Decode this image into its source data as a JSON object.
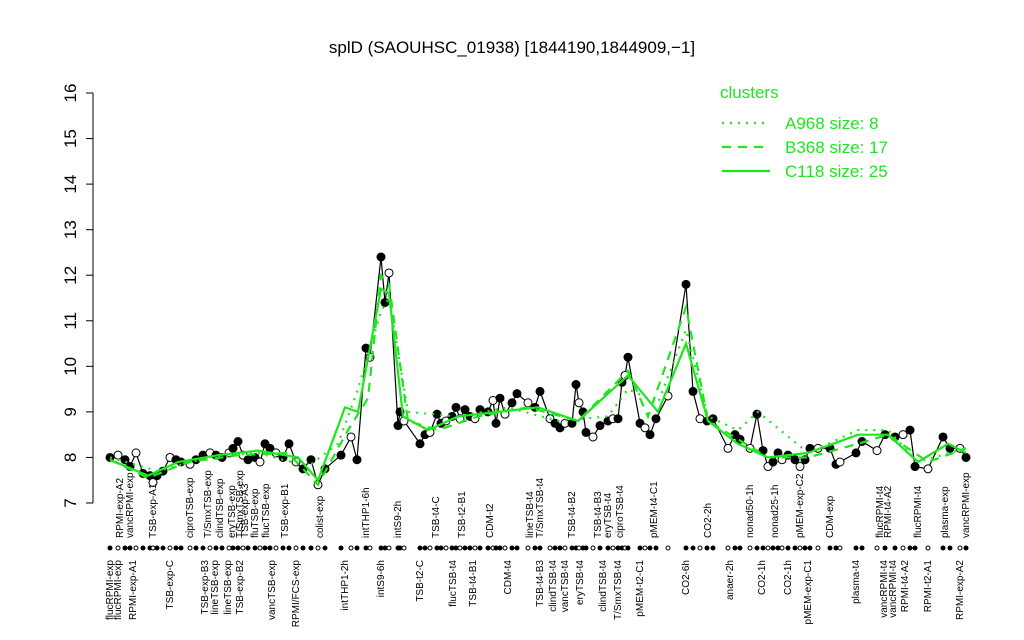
{
  "chart_data": {
    "type": "line",
    "title": "splD (SAOUHSC_01938) [1844190,1844909,−1]",
    "ylim": [
      7,
      16
    ],
    "yticks": [
      7,
      8,
      9,
      10,
      11,
      12,
      13,
      14,
      15,
      16
    ],
    "xlim": [
      0,
      172
    ],
    "legend_title": "clusters",
    "series": [
      {
        "color": "#000000",
        "x": [
          0.4,
          2,
          3.4,
          4.4,
          5.6,
          7,
          8.4,
          9,
          9.8,
          11,
          12.4,
          13.6,
          14.6,
          16.4,
          17.6,
          19,
          20.4,
          21.6,
          22.8,
          24.2,
          25,
          26,
          27,
          28,
          29.4,
          30.4,
          31.4,
          32.4,
          33.6,
          35,
          36.2,
          37.6,
          39,
          40.6,
          42,
          43.4,
          46.6,
          48.6,
          49.8,
          51.6,
          52.4,
          54.6,
          55.4,
          56.2,
          58,
          58.4,
          59.2,
          62.4,
          63.4,
          64.4,
          65.8,
          66.6,
          67.6,
          68.8,
          69.6,
          70.4,
          71.4,
          72.4,
          73.4,
          74.4,
          76,
          77,
          77.6,
          78.4,
          79.4,
          80.8,
          81.8,
          84,
          85.4,
          86.4,
          88.4,
          89.4,
          90.4,
          91.4,
          92.8,
          93.6,
          94.2,
          95,
          95.6,
          97,
          98.4,
          100,
          101,
          102,
          102.8,
          103.4,
          104,
          106.4,
          107.4,
          108.4,
          109.6,
          112,
          115.6,
          117,
          118.4,
          119.8,
          121,
          124,
          125.4,
          126.4,
          128.4,
          129.8,
          131,
          132,
          133,
          134,
          134.8,
          136,
          137.4,
          138.4,
          139.4,
          140.4,
          142,
          144.4,
          145.6,
          146.4,
          149.6,
          150.8,
          153.8,
          155.4,
          157.4,
          159,
          160.4,
          161.4,
          164,
          167,
          168.4,
          170.4,
          171.6
        ],
        "values": [
          8.0,
          8.05,
          7.95,
          7.8,
          8.1,
          7.65,
          7.6,
          7.45,
          7.6,
          7.7,
          8.0,
          7.95,
          7.9,
          7.85,
          7.95,
          8.05,
          8.1,
          8.05,
          8.0,
          8.1,
          8.2,
          8.35,
          8.05,
          7.95,
          8.0,
          7.9,
          8.3,
          8.2,
          8.1,
          8.0,
          8.3,
          7.9,
          7.75,
          7.95,
          7.4,
          7.75,
          8.05,
          8.45,
          7.95,
          10.4,
          10.2,
          12.4,
          11.4,
          12.05,
          8.7,
          9.0,
          8.8,
          8.3,
          8.5,
          8.55,
          8.95,
          8.75,
          8.8,
          8.9,
          9.1,
          8.85,
          9.05,
          8.9,
          8.85,
          9.05,
          9.0,
          9.25,
          8.75,
          9.3,
          8.95,
          9.2,
          9.4,
          9.2,
          9.1,
          9.45,
          8.85,
          8.75,
          8.65,
          8.75,
          8.75,
          9.6,
          9.2,
          9.0,
          8.55,
          8.45,
          8.7,
          8.8,
          8.85,
          8.85,
          9.65,
          9.8,
          10.2,
          8.75,
          8.65,
          8.5,
          8.85,
          9.35,
          11.8,
          9.45,
          8.85,
          8.8,
          8.85,
          8.2,
          8.5,
          8.4,
          8.2,
          8.95,
          8.15,
          7.8,
          7.9,
          8.1,
          7.95,
          8.05,
          7.95,
          7.8,
          7.95,
          8.2,
          8.2,
          8.2,
          7.85,
          7.9,
          8.1,
          8.35,
          8.15,
          8.5,
          8.45,
          8.5,
          8.6,
          7.8,
          7.75,
          8.45,
          8.2,
          8.2,
          8.0
        ]
      },
      {
        "name": "A968 size: 8",
        "color": "#1ee61e",
        "dash": "dotted",
        "axis": "legend",
        "x": [
          0.4,
          10,
          20,
          30,
          40,
          46,
          50,
          54.6,
          56.2,
          60,
          70,
          80,
          90,
          100,
          104,
          110,
          115.6,
          120,
          126,
          130,
          140,
          150,
          156,
          162,
          171.6
        ],
        "values": [
          8.0,
          7.7,
          8.0,
          8.1,
          7.8,
          8.3,
          9.5,
          11.2,
          11.5,
          9.0,
          8.9,
          9.1,
          8.8,
          8.9,
          9.5,
          9.2,
          10.8,
          8.9,
          8.6,
          9.0,
          8.1,
          8.6,
          8.6,
          7.9,
          8.2
        ]
      },
      {
        "name": "B368 size: 17",
        "color": "#1ee61e",
        "dash": "dashed",
        "x": [
          0.4,
          8,
          16,
          26,
          36,
          42,
          48,
          52,
          54.6,
          56.2,
          60,
          66,
          74,
          84,
          94,
          104,
          108,
          115.6,
          120,
          126,
          132,
          140,
          150,
          156,
          164,
          171.6
        ],
        "values": [
          7.95,
          7.55,
          7.9,
          8.05,
          8.1,
          7.4,
          8.6,
          9.3,
          12.0,
          11.8,
          8.8,
          8.6,
          8.9,
          9.1,
          8.8,
          9.9,
          8.9,
          11.3,
          8.8,
          8.4,
          8.0,
          8.0,
          8.3,
          8.5,
          7.9,
          8.2
        ]
      },
      {
        "name": "C118 size: 25",
        "color": "#1ee61e",
        "dash": "solid",
        "x": [
          0.4,
          8,
          14,
          22,
          30,
          38,
          42,
          47.4,
          50,
          54.6,
          56.2,
          59,
          64,
          70,
          78,
          86,
          94,
          104,
          110,
          115.6,
          120,
          126,
          132,
          140,
          150,
          156,
          162,
          168,
          171.6
        ],
        "values": [
          7.95,
          7.6,
          7.9,
          8.05,
          8.15,
          8.0,
          7.5,
          9.1,
          9.0,
          11.7,
          11.6,
          8.9,
          8.6,
          8.9,
          9.0,
          9.1,
          8.8,
          9.8,
          9.0,
          10.5,
          8.8,
          8.3,
          8.0,
          8.1,
          8.5,
          8.5,
          7.9,
          8.3,
          8.1
        ]
      }
    ],
    "top_labels": {
      "x": [
        2.4,
        4.4,
        9,
        16.4,
        20,
        22.4,
        24.8,
        26.4,
        27.4,
        29.4,
        31.6,
        35.4,
        42.4,
        51.6,
        58,
        65.6,
        70.8,
        76.4,
        84.4,
        86.4,
        92.8,
        98,
        100,
        102.4,
        109.2,
        120,
        128.4,
        133.4,
        138.4,
        144.4,
        154.4,
        156,
        162,
        167.4,
        171.6
      ],
      "labels": [
        "RPMI-exp-A2",
        "vancRPMI-exp",
        "TSB-exp-A1",
        "ciproTSB-exp",
        "T/SmxTSB-exp",
        "clindTSB-exp",
        "eryTSB-exp",
        "T/SmxTSB-exp",
        "TSB-exp-A3",
        "fluTSB-exp",
        "flucTSB-exp",
        "TSB-exp-B1",
        "colist-exp",
        "intTHP1-6h",
        "intS9-2h",
        "TSB-t4-C",
        "TSB-t2-B1",
        "CDM-t2",
        "lineTSB-t4",
        "T/SmxTSB-t4",
        "TSB-t4-B2",
        "TSB-t4-B3",
        "eryTSB-t4",
        "ciproTSB-t4",
        "pMEM-t4-C1",
        "CO2-2h",
        "nonad50-1h",
        "nonad25-1h",
        "pMEM-exp-C2",
        "CDM-exp",
        "flucRPMI-t4",
        "RPMI-t4-A2",
        "flucRPMI-t4",
        "plasma-exp",
        "vancRPMI-exp"
      ]
    },
    "bottom_labels": {
      "x": [
        0.4,
        2,
        5,
        12.4,
        19.4,
        21.4,
        24,
        26.4,
        32.8,
        37.6,
        47.4,
        54.6,
        62.4,
        69,
        73,
        80,
        86.4,
        89,
        91.4,
        94.4,
        99,
        102,
        106.4,
        115.6,
        124.4,
        130.8,
        136,
        140,
        149.6,
        155.2,
        157,
        159.4,
        164,
        170.4
      ],
      "labels": [
        "flucRPMI-exp",
        "flucRPMI-exp",
        "RPMI-exp-A1",
        "TSB-exp-C",
        "TSB-exp-B3",
        "lineTSB-exp",
        "lineTSB-exp",
        "TSB-exp-B2",
        "vancTSB-exp",
        "RPMI/FCS-exp",
        "intTHP1-2h",
        "intS9-6h",
        "TSB-t2-C",
        "flucTSB-t4",
        "TSB-t4-B1",
        "CDM-t4",
        "TSB-t4-B3",
        "clindTSB-t4",
        "vancTSB-t4",
        "eryTSB-t4",
        "clindTSB-t4",
        "T/SmxTSB-t4",
        "pMEM-t2-C1",
        "CO2-6h",
        "anaer-2h",
        "CO2-1h",
        "CO2-1h",
        "pMEM-exp-C1",
        "plasma-t4",
        "vancRPMI-t4",
        "vancRPMI-t4",
        "RPMI-t4-A2",
        "RPMI-t2-A1",
        "RPMI-exp-A2"
      ]
    }
  }
}
